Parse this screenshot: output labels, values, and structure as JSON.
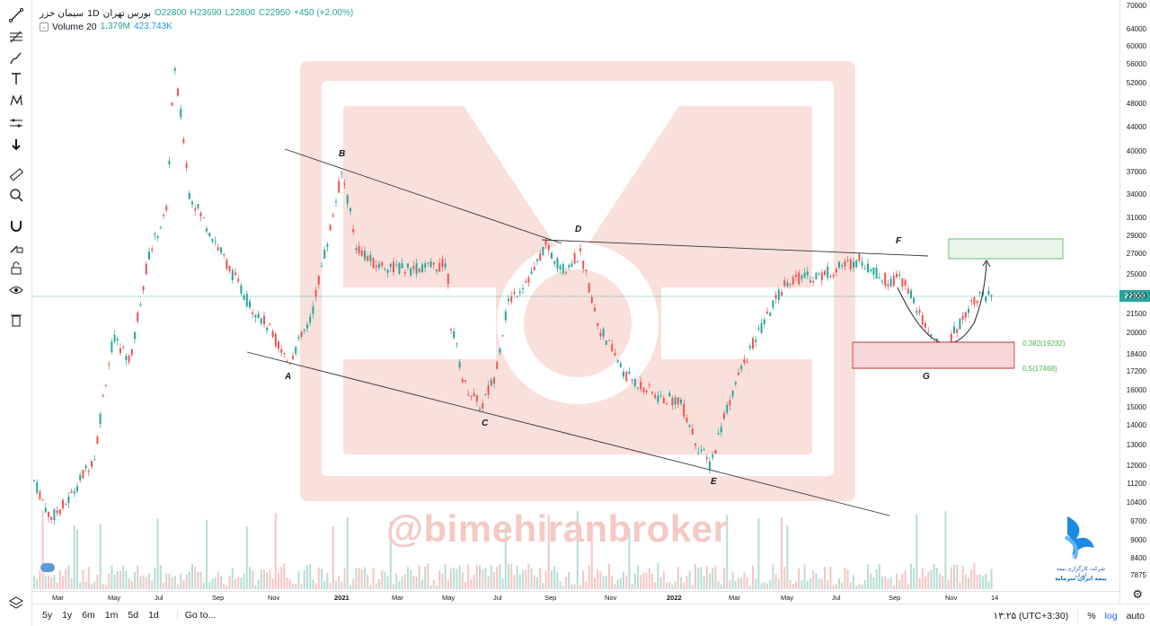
{
  "symbol": {
    "name": "سیمان خزر",
    "interval": "1D",
    "exchange": "بورس تهران",
    "ohlc": {
      "o": "O22800",
      "h": "H23690",
      "l": "L22800",
      "c": "C22950",
      "change": "+450 (+2.00%)"
    }
  },
  "volume_legend": {
    "label": "Volume 20",
    "v1": "1.379M",
    "v2": "423.743K"
  },
  "price_axis": {
    "ticks": [
      "70000",
      "64000",
      "60000",
      "56000",
      "52000",
      "48000",
      "44000",
      "40000",
      "37000",
      "34000",
      "31000",
      "29000",
      "27000",
      "25000",
      "23000",
      "21500",
      "20000",
      "18400",
      "17200",
      "16000",
      "15000",
      "14000",
      "13000",
      "12000",
      "11200",
      "10400",
      "9700",
      "9000",
      "8400",
      "7875"
    ],
    "last_price": "22950"
  },
  "time_axis": {
    "ticks": [
      "Mar",
      "May",
      "Jul",
      "Sep",
      "Nov",
      "2021",
      "Mar",
      "May",
      "Jul",
      "Sep",
      "Nov",
      "2022",
      "Mar",
      "May",
      "Jul",
      "Sep",
      "Nov",
      "14"
    ]
  },
  "pattern_labels": {
    "a": "A",
    "b": "B",
    "c": "C",
    "d": "D",
    "e": "E",
    "f": "F",
    "g": "G"
  },
  "fib_levels": {
    "l382": "0.382(19232)",
    "l5": "0.5(17468)"
  },
  "watermark": "@bimehiranbroker",
  "logo": {
    "line1": "شرکت کارگزاری بیمه ایران",
    "line2": "بیمه ایران سرمایه"
  },
  "toolbar": {
    "tools": [
      "line-tool-icon",
      "fib-tool-icon",
      "brush-tool-icon",
      "text-tool-icon",
      "pattern-tool-icon",
      "prediction-tool-icon",
      "arrow-down-icon",
      "ruler-icon",
      "zoom-icon",
      "magnet-icon",
      "lock-drawing-icon",
      "lock-icon",
      "eye-icon",
      "trash-icon",
      "layers-icon"
    ]
  },
  "bottom_bar": {
    "ranges": [
      "5y",
      "1y",
      "6m",
      "1m",
      "5d",
      "1d"
    ],
    "goto": "Go to...",
    "time": "۱۳:۲۵ (UTC+3:30)",
    "percent": "%",
    "log": "log",
    "auto": "auto"
  },
  "colors": {
    "up": "#26a69a",
    "down": "#ef5350",
    "accent": "#2962ff",
    "watermark": "#f4c9c4"
  },
  "chart_data": {
    "type": "candlestick",
    "series": [
      {
        "name": "Volume 20"
      }
    ],
    "price_scale": "log",
    "y_range": [
      7875,
      70000
    ],
    "pattern_points": [
      {
        "label": "A",
        "date": "2020-11",
        "price": 17800
      },
      {
        "label": "B",
        "date": "2021-01",
        "price": 37000
      },
      {
        "label": "C",
        "date": "2021-06",
        "price": 15000
      },
      {
        "label": "D",
        "date": "2021-09",
        "price": 28500
      },
      {
        "label": "E",
        "date": "2022-02",
        "price": 12000
      },
      {
        "label": "F",
        "date": "2022-07",
        "price": 27000
      },
      {
        "label": "G",
        "date": "2022-11",
        "price": 18400
      }
    ],
    "fibonacci": [
      {
        "level": 0.382,
        "price": 19232
      },
      {
        "level": 0.5,
        "price": 17468
      }
    ],
    "last_close": 22950
  }
}
